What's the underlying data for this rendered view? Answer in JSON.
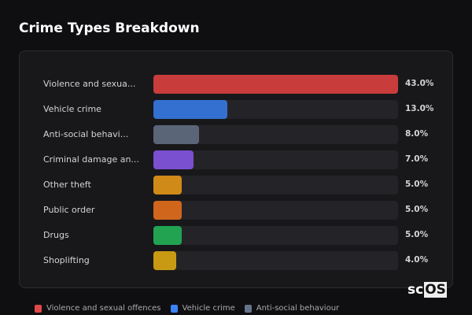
{
  "chart_data": {
    "type": "bar",
    "orientation": "horizontal",
    "title": "Crime Types Breakdown",
    "categories": [
      "Violence and sexua...",
      "Vehicle crime",
      "Anti-social behavi...",
      "Criminal damage an...",
      "Other theft",
      "Public order",
      "Drugs",
      "Shoplifting"
    ],
    "values": [
      43.0,
      13.0,
      8.0,
      7.0,
      5.0,
      5.0,
      5.0,
      4.0
    ],
    "value_labels": [
      "43.0%",
      "13.0%",
      "8.0%",
      "7.0%",
      "5.0%",
      "5.0%",
      "5.0%",
      "4.0%"
    ],
    "colors": [
      "#c93c3c",
      "#3370d0",
      "#5a6578",
      "#7a4fd0",
      "#d08a18",
      "#d0661c",
      "#22a352",
      "#c89a14"
    ],
    "legend": [
      {
        "name": "Violence and sexual offences",
        "color": "#e04848"
      },
      {
        "name": "Vehicle crime",
        "color": "#3b82f6"
      },
      {
        "name": "Anti-social behaviour",
        "color": "#64748b"
      }
    ],
    "legend_position": "bottom",
    "grid": false
  },
  "logo": {
    "text_a": "sc",
    "text_b": "OS"
  }
}
